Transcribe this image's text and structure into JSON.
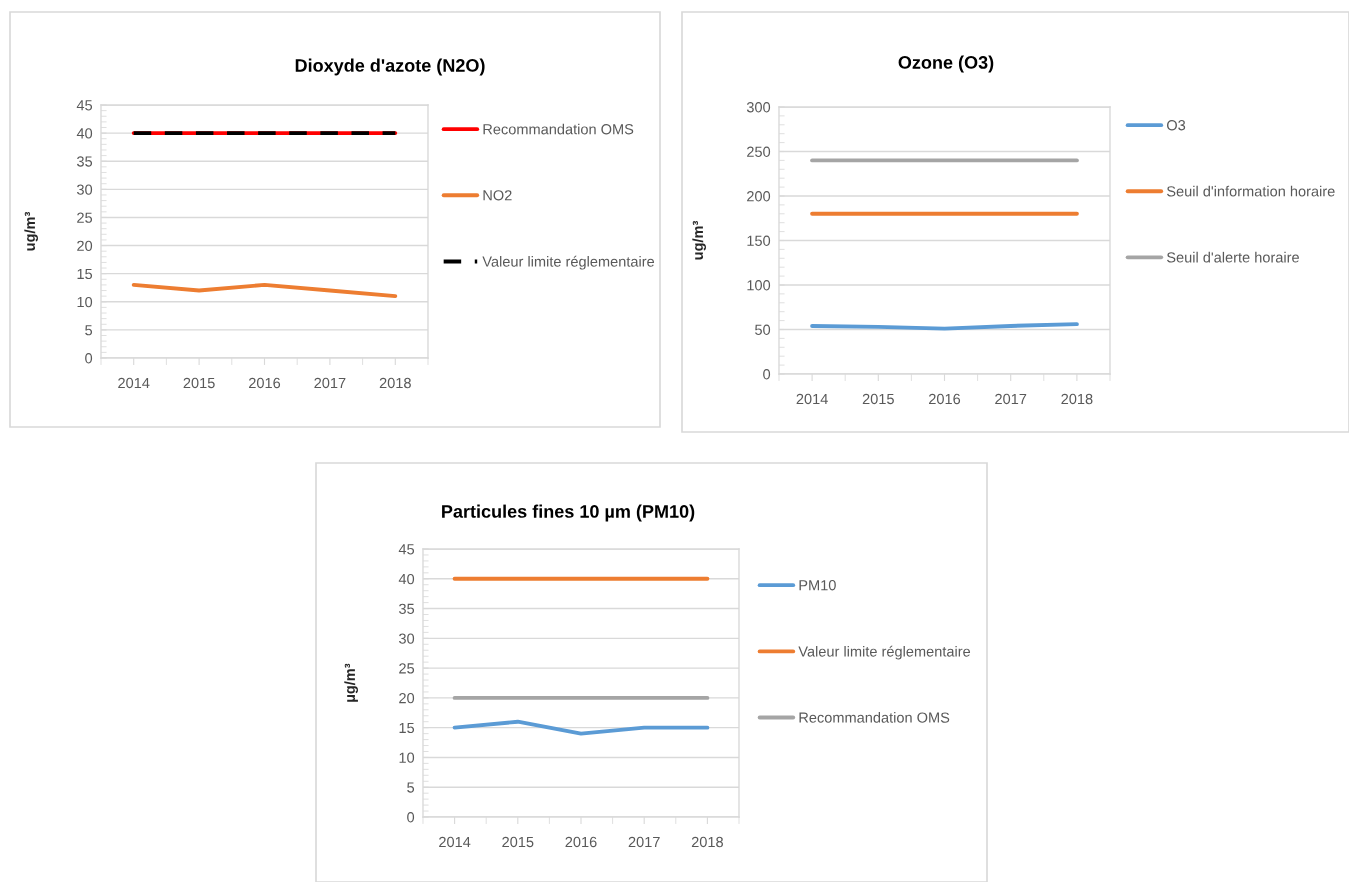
{
  "chart_data": [
    {
      "type": "line",
      "title": "Dioxyde d'azote (N2O)",
      "ylabel": "ug/m³",
      "categories": [
        "2014",
        "2015",
        "2016",
        "2017",
        "2018"
      ],
      "series": [
        {
          "name": "Recommandation OMS",
          "color": "#ff0000",
          "values": [
            40,
            40,
            40,
            40,
            40
          ]
        },
        {
          "name": "NO2",
          "color": "#ed7d31",
          "values": [
            13,
            12,
            13,
            12,
            11
          ]
        },
        {
          "name": "Valeur limite réglementaire",
          "color": "#000000",
          "values": [
            40,
            40,
            40,
            40,
            40
          ],
          "line_style": "dashed"
        }
      ],
      "ylim": [
        0,
        45
      ],
      "yticks": [
        0,
        5,
        10,
        15,
        20,
        25,
        30,
        35,
        40,
        45
      ],
      "grid": "y",
      "legend": "right",
      "marker": "none",
      "line_style": "solid"
    },
    {
      "type": "line",
      "title": "Ozone (O3)",
      "ylabel": "ug/m³",
      "categories": [
        "2014",
        "2015",
        "2016",
        "2017",
        "2018"
      ],
      "series": [
        {
          "name": "O3",
          "color": "#5b9bd5",
          "values": [
            54,
            53,
            51,
            54,
            56
          ]
        },
        {
          "name": "Seuil d'information horaire",
          "color": "#ed7d31",
          "values": [
            180,
            180,
            180,
            180,
            180
          ]
        },
        {
          "name": "Seuil d'alerte horaire",
          "color": "#a5a5a5",
          "values": [
            240,
            240,
            240,
            240,
            240
          ]
        }
      ],
      "ylim": [
        0,
        300
      ],
      "yticks": [
        0,
        50,
        100,
        150,
        200,
        250,
        300
      ],
      "grid": "y",
      "legend": "right",
      "marker": "none",
      "line_style": "solid"
    },
    {
      "type": "line",
      "title": "Particules fines 10 µm (PM10)",
      "ylabel": "µg/m³",
      "categories": [
        "2014",
        "2015",
        "2016",
        "2017",
        "2018"
      ],
      "series": [
        {
          "name": "PM10",
          "color": "#5b9bd5",
          "values": [
            15,
            16,
            14,
            15,
            15
          ]
        },
        {
          "name": "Valeur limite réglementaire",
          "color": "#ed7d31",
          "values": [
            40,
            40,
            40,
            40,
            40
          ]
        },
        {
          "name": "Recommandation OMS",
          "color": "#a5a5a5",
          "values": [
            20,
            20,
            20,
            20,
            20
          ]
        }
      ],
      "ylim": [
        0,
        45
      ],
      "yticks": [
        0,
        5,
        10,
        15,
        20,
        25,
        30,
        35,
        40,
        45
      ],
      "grid": "y",
      "legend": "right",
      "marker": "none",
      "line_style": "solid"
    }
  ]
}
